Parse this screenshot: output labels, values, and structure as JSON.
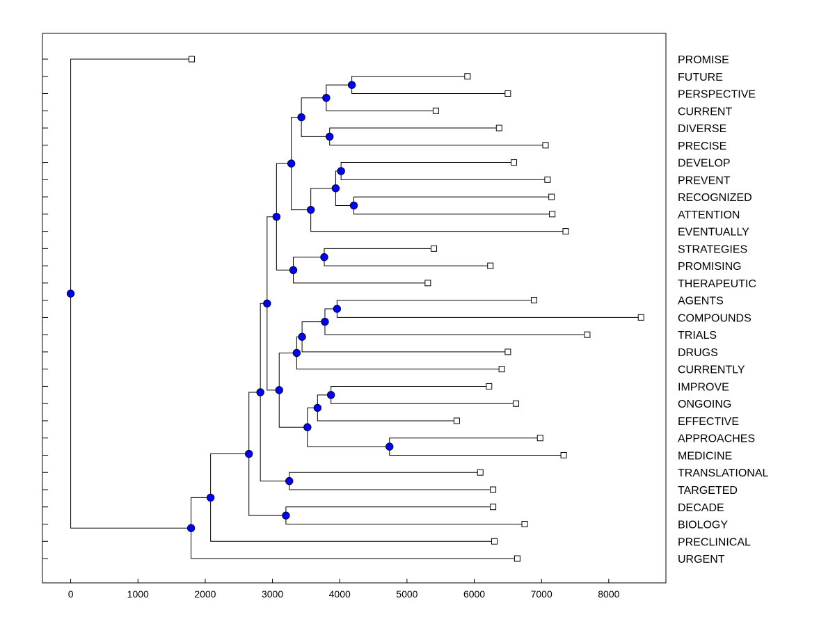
{
  "colors": {
    "background": "#ffffff",
    "line": "#000000",
    "node_fill": "#0000ff",
    "leaf_fill": "#ffffff"
  },
  "chart_data": {
    "type": "dendrogram",
    "title": "",
    "xlabel": "",
    "ylabel": "",
    "xlim": [
      -420,
      8850
    ],
    "grid": false,
    "x_ticks": [
      0,
      1000,
      2000,
      3000,
      4000,
      5000,
      6000,
      7000,
      8000
    ],
    "x_tick_labels": [
      "0",
      "1000",
      "2000",
      "3000",
      "4000",
      "5000",
      "6000",
      "7000",
      "8000"
    ],
    "leaves": [
      {
        "label": "PROMISE",
        "value": 1800
      },
      {
        "label": "FUTURE",
        "value": 5900
      },
      {
        "label": "PERSPECTIVE",
        "value": 6500
      },
      {
        "label": "CURRENT",
        "value": 5430
      },
      {
        "label": "DIVERSE",
        "value": 6370
      },
      {
        "label": "PRECISE",
        "value": 7060
      },
      {
        "label": "DEVELOP",
        "value": 6590
      },
      {
        "label": "PREVENT",
        "value": 7090
      },
      {
        "label": "RECOGNIZED",
        "value": 7150
      },
      {
        "label": "ATTENTION",
        "value": 7160
      },
      {
        "label": "EVENTUALLY",
        "value": 7360
      },
      {
        "label": "STRATEGIES",
        "value": 5400
      },
      {
        "label": "PROMISING",
        "value": 6240
      },
      {
        "label": "THERAPEUTIC",
        "value": 5310
      },
      {
        "label": "AGENTS",
        "value": 6890
      },
      {
        "label": "COMPOUNDS",
        "value": 8480
      },
      {
        "label": "TRIALS",
        "value": 7680
      },
      {
        "label": "DRUGS",
        "value": 6500
      },
      {
        "label": "CURRENTLY",
        "value": 6410
      },
      {
        "label": "IMPROVE",
        "value": 6220
      },
      {
        "label": "ONGOING",
        "value": 6620
      },
      {
        "label": "EFFECTIVE",
        "value": 5740
      },
      {
        "label": "APPROACHES",
        "value": 6980
      },
      {
        "label": "MEDICINE",
        "value": 7330
      },
      {
        "label": "TRANSLATIONAL",
        "value": 6090
      },
      {
        "label": "TARGETED",
        "value": 6280
      },
      {
        "label": "DECADE",
        "value": 6280
      },
      {
        "label": "BIOLOGY",
        "value": 6750
      },
      {
        "label": "PRECLINICAL",
        "value": 6300
      },
      {
        "label": "URGENT",
        "value": 6640
      }
    ],
    "merges": [
      {
        "id": "n1",
        "value": 4180,
        "children": [
          1,
          2
        ]
      },
      {
        "id": "n2",
        "value": 3800,
        "children": [
          "n1",
          3
        ]
      },
      {
        "id": "n3",
        "value": 3850,
        "children": [
          4,
          5
        ]
      },
      {
        "id": "n4",
        "value": 3430,
        "children": [
          "n2",
          "n3"
        ]
      },
      {
        "id": "n5",
        "value": 4020,
        "children": [
          6,
          7
        ]
      },
      {
        "id": "n6",
        "value": 4210,
        "children": [
          8,
          9
        ]
      },
      {
        "id": "n7",
        "value": 3940,
        "children": [
          "n5",
          "n6"
        ]
      },
      {
        "id": "n8",
        "value": 3570,
        "children": [
          "n7",
          10
        ]
      },
      {
        "id": "n9",
        "value": 3280,
        "children": [
          "n4",
          "n8"
        ]
      },
      {
        "id": "n10",
        "value": 3770,
        "children": [
          11,
          12
        ]
      },
      {
        "id": "n11",
        "value": 3310,
        "children": [
          "n10",
          13
        ]
      },
      {
        "id": "n12",
        "value": 3060,
        "children": [
          "n9",
          "n11"
        ]
      },
      {
        "id": "n13",
        "value": 3960,
        "children": [
          14,
          15
        ]
      },
      {
        "id": "n14",
        "value": 3780,
        "children": [
          "n13",
          16
        ]
      },
      {
        "id": "n15",
        "value": 3440,
        "children": [
          "n14",
          17
        ]
      },
      {
        "id": "n16",
        "value": 3360,
        "children": [
          "n15",
          18
        ]
      },
      {
        "id": "n17",
        "value": 3870,
        "children": [
          19,
          20
        ]
      },
      {
        "id": "n18",
        "value": 3670,
        "children": [
          "n17",
          21
        ]
      },
      {
        "id": "n19",
        "value": 4740,
        "children": [
          22,
          23
        ]
      },
      {
        "id": "n20",
        "value": 3520,
        "children": [
          "n18",
          "n19"
        ]
      },
      {
        "id": "n21",
        "value": 3100,
        "children": [
          "n16",
          "n20"
        ]
      },
      {
        "id": "n22",
        "value": 2920,
        "children": [
          "n12",
          "n21"
        ]
      },
      {
        "id": "n23",
        "value": 3250,
        "children": [
          24,
          25
        ]
      },
      {
        "id": "n24",
        "value": 2820,
        "children": [
          "n22",
          "n23"
        ]
      },
      {
        "id": "n25",
        "value": 3200,
        "children": [
          26,
          27
        ]
      },
      {
        "id": "n26",
        "value": 2650,
        "children": [
          "n24",
          "n25"
        ]
      },
      {
        "id": "n27",
        "value": 2080,
        "children": [
          "n26",
          28
        ]
      },
      {
        "id": "n28",
        "value": 1790,
        "children": [
          "n27",
          29
        ]
      },
      {
        "id": "n29",
        "value": 0,
        "children": [
          0,
          "n28"
        ]
      }
    ]
  }
}
